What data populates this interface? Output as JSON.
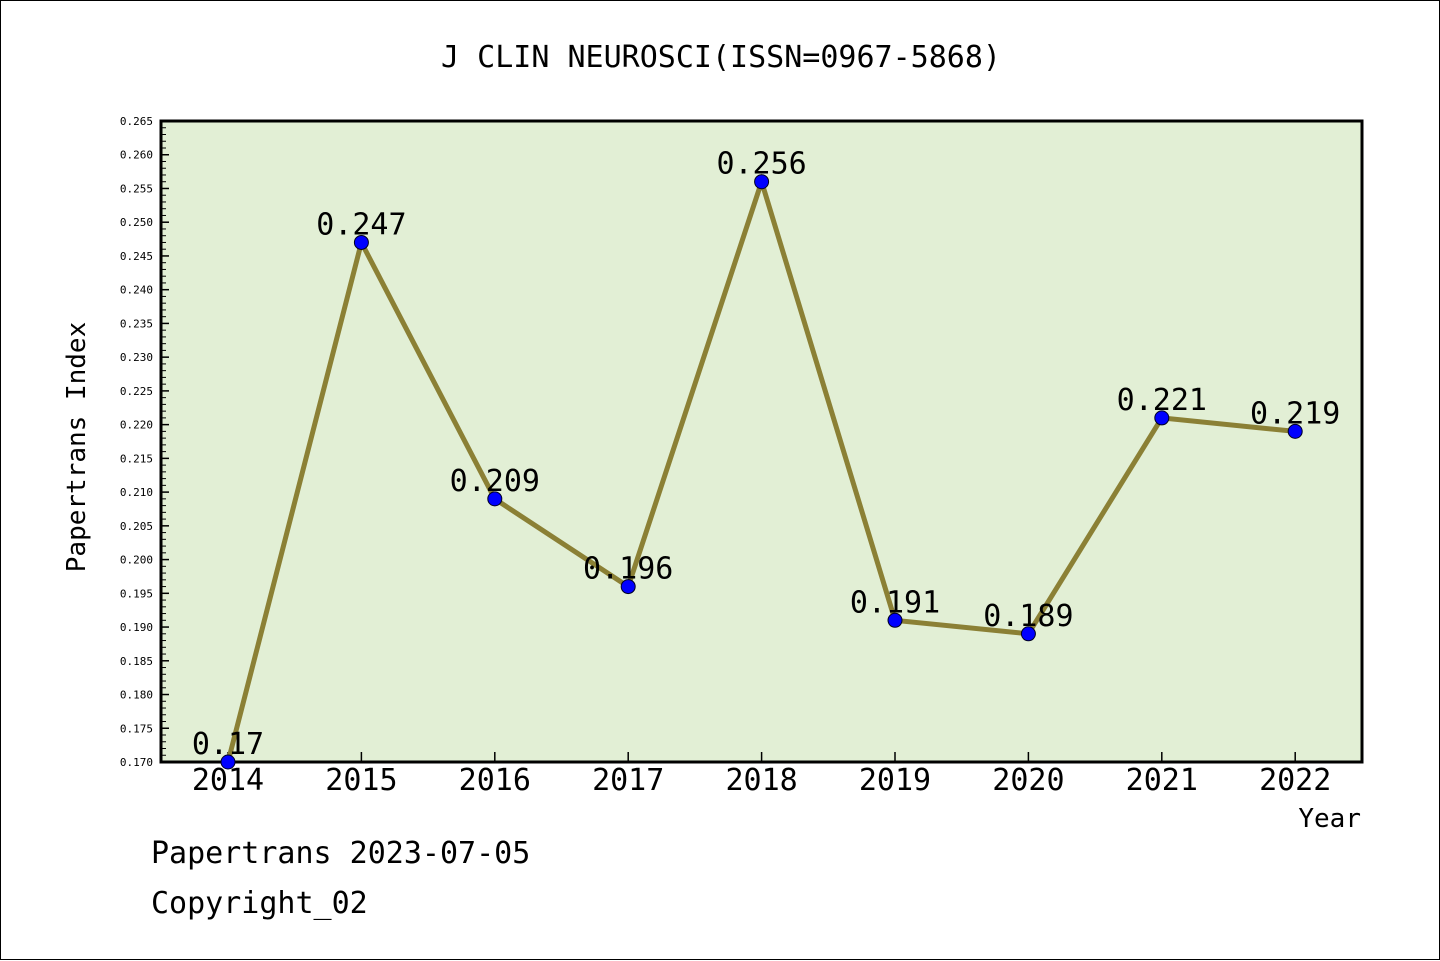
{
  "chart_data": {
    "type": "line",
    "title": "J CLIN NEUROSCI(ISSN=0967-5868)",
    "xlabel": "Year",
    "ylabel": "Papertrans Index",
    "categories": [
      "2014",
      "2015",
      "2016",
      "2017",
      "2018",
      "2019",
      "2020",
      "2021",
      "2022"
    ],
    "series": [
      {
        "values": [
          0.17,
          0.247,
          0.209,
          0.196,
          0.256,
          0.191,
          0.189,
          0.221,
          0.219
        ],
        "labels": [
          "0.17",
          "0.247",
          "0.209",
          "0.196",
          "0.256",
          "0.191",
          "0.189",
          "0.221",
          "0.219"
        ]
      }
    ],
    "ylim": [
      0.17,
      0.265
    ],
    "yticks": [
      "0.170",
      "0.175",
      "0.180",
      "0.185",
      "0.190",
      "0.195",
      "0.200",
      "0.205",
      "0.210",
      "0.215",
      "0.220",
      "0.225",
      "0.230",
      "0.235",
      "0.240",
      "0.245",
      "0.250",
      "0.255",
      "0.260",
      "0.265"
    ],
    "grid": false,
    "colors": {
      "plot_background": "#e2efd5",
      "line": "#8b8035",
      "marker": "#0000ff"
    }
  },
  "footer": {
    "source": "Papertrans 2023-07-05",
    "copyright": "Copyright_02"
  }
}
